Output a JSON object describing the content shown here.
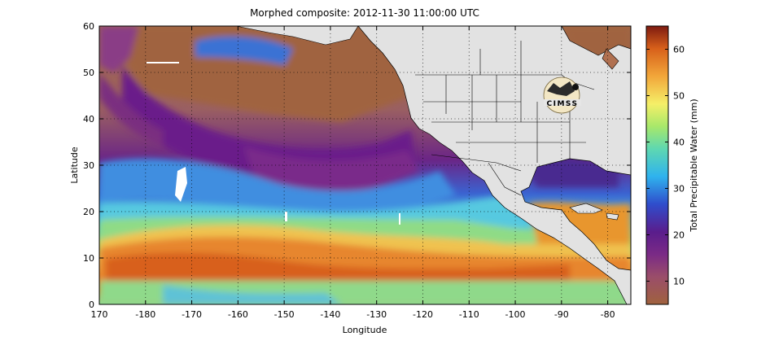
{
  "title": "Morphed composite: 2012-11-30 11:00:00 UTC",
  "map": {
    "xlabel": "Longitude",
    "ylabel": "Latitude",
    "x_ticks": [
      170,
      -180,
      -170,
      -160,
      -150,
      -140,
      -130,
      -120,
      -110,
      -100,
      -90,
      -80
    ],
    "y_ticks": [
      0,
      10,
      20,
      30,
      40,
      50,
      60
    ],
    "lon_range": [
      170,
      285
    ],
    "lat_range": [
      0,
      60
    ],
    "grid": true,
    "logo_text": "CIMSS",
    "land_color": "#e2e2e2"
  },
  "colorbar": {
    "label": "Total Precipitable Water (mm)",
    "ticks": [
      10,
      20,
      30,
      40,
      50,
      60
    ],
    "range": [
      5,
      65
    ],
    "colors": [
      "#a0623e",
      "#8e3d78",
      "#5e1f8a",
      "#2f49c8",
      "#2fb3ee",
      "#7fe08f",
      "#f5f06a",
      "#f2a63a",
      "#d9661c",
      "#7d1a10"
    ]
  }
}
